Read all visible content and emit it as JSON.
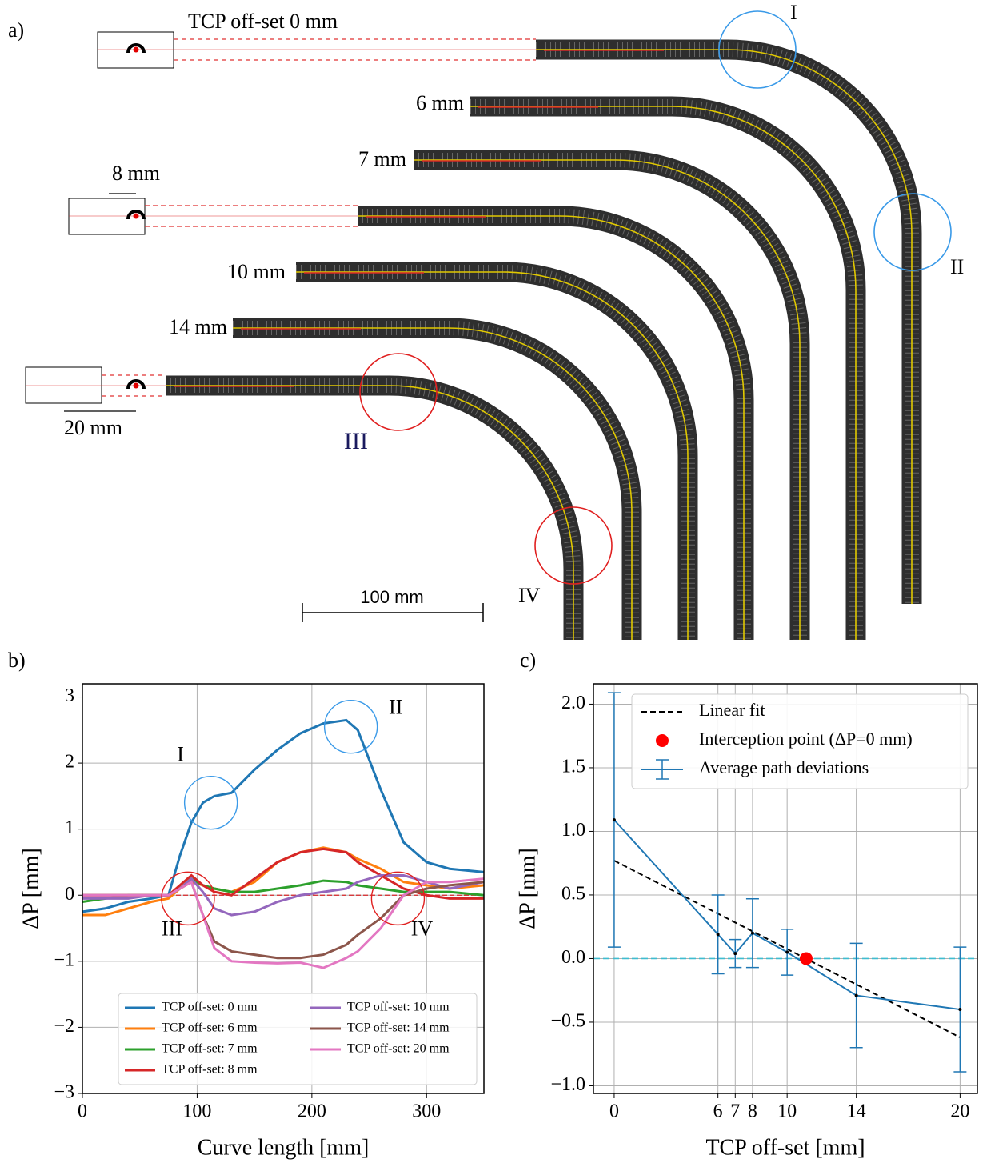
{
  "panel_labels": [
    "a)",
    "b)",
    "c)"
  ],
  "diagram": {
    "offset_labels": [
      "TCP off-set 0 mm",
      "6 mm",
      "7 mm",
      "10 mm",
      "14 mm"
    ],
    "dimension_labels": [
      "8 mm",
      "20 mm"
    ],
    "scale_bar": "100 mm",
    "markers": [
      "I",
      "II",
      "III",
      "IV"
    ]
  },
  "chart_data": [
    {
      "type": "line",
      "xlabel": "Curve length [mm]",
      "ylabel": "ΔP [mm]",
      "x": [
        0,
        20,
        40,
        60,
        75,
        85,
        95,
        105,
        115,
        130,
        150,
        170,
        190,
        210,
        230,
        240,
        260,
        280,
        300,
        320,
        350
      ],
      "series": [
        {
          "name": "TCP off-set: 0 mm",
          "color": "#1f77b4",
          "values": [
            -0.25,
            -0.2,
            -0.1,
            -0.05,
            0.0,
            0.6,
            1.1,
            1.4,
            1.5,
            1.55,
            1.9,
            2.2,
            2.45,
            2.6,
            2.65,
            2.5,
            1.6,
            0.8,
            0.5,
            0.4,
            0.35
          ]
        },
        {
          "name": "TCP off-set: 6 mm",
          "color": "#ff7f0e",
          "values": [
            -0.3,
            -0.3,
            -0.2,
            -0.1,
            -0.05,
            0.1,
            0.2,
            0.15,
            0.1,
            0.05,
            0.2,
            0.5,
            0.65,
            0.72,
            0.65,
            0.55,
            0.4,
            0.2,
            0.15,
            0.1,
            0.15
          ]
        },
        {
          "name": "TCP off-set: 7 mm",
          "color": "#2ca02c",
          "values": [
            -0.1,
            -0.05,
            0.0,
            0.0,
            0.0,
            0.1,
            0.25,
            0.15,
            0.1,
            0.05,
            0.05,
            0.1,
            0.15,
            0.22,
            0.2,
            0.15,
            0.1,
            0.05,
            0.05,
            0.05,
            0.0
          ]
        },
        {
          "name": "TCP off-set: 8 mm",
          "color": "#d62728",
          "values": [
            0.0,
            0.0,
            0.0,
            0.0,
            0.0,
            0.15,
            0.3,
            0.15,
            0.05,
            0.0,
            0.25,
            0.5,
            0.65,
            0.7,
            0.65,
            0.5,
            0.3,
            0.1,
            0.0,
            -0.05,
            -0.05
          ]
        },
        {
          "name": "TCP off-set: 10 mm",
          "color": "#9467bd",
          "values": [
            -0.05,
            -0.05,
            -0.05,
            0.0,
            0.0,
            0.1,
            0.25,
            0.05,
            -0.2,
            -0.3,
            -0.25,
            -0.1,
            0.0,
            0.05,
            0.1,
            0.2,
            0.3,
            0.3,
            0.2,
            0.1,
            0.2
          ]
        },
        {
          "name": "TCP off-set: 14 mm",
          "color": "#8c564b",
          "values": [
            0.0,
            0.0,
            0.0,
            0.0,
            0.0,
            0.1,
            0.2,
            -0.3,
            -0.7,
            -0.85,
            -0.9,
            -0.95,
            -0.95,
            -0.9,
            -0.75,
            -0.6,
            -0.35,
            0.0,
            0.1,
            0.15,
            0.2
          ]
        },
        {
          "name": "TCP off-set: 20 mm",
          "color": "#e377c2",
          "values": [
            0.0,
            0.0,
            0.0,
            0.0,
            0.0,
            0.1,
            0.2,
            -0.3,
            -0.8,
            -1.0,
            -1.02,
            -1.03,
            -1.02,
            -1.1,
            -0.95,
            -0.85,
            -0.5,
            0.0,
            0.2,
            0.2,
            0.25
          ]
        }
      ],
      "xlim": [
        0,
        350
      ],
      "ylim": [
        -3,
        3.2
      ],
      "xticks": [
        0,
        100,
        200,
        300
      ],
      "yticks": [
        {
          "value": -3,
          "label": "−3"
        },
        {
          "value": -2,
          "label": "−2"
        },
        {
          "value": -1,
          "label": "−1"
        },
        0,
        1,
        2,
        3
      ],
      "grid": true,
      "legend": "lower center",
      "annotations": [
        "I",
        "II",
        "III",
        "IV"
      ]
    },
    {
      "type": "errorbar",
      "xlabel": "TCP off-set [mm]",
      "ylabel": "ΔP [mm]",
      "series": [
        {
          "name": "Linear fit",
          "kind": "line",
          "style": "dashed",
          "color": "#000000",
          "x": [
            0,
            20
          ],
          "values": [
            0.77,
            -0.62
          ]
        },
        {
          "name": "Interception point (ΔP=0 mm)",
          "kind": "scatter",
          "color": "#ff0000",
          "x": [
            11.1
          ],
          "values": [
            0
          ]
        },
        {
          "name": "Average path deviations",
          "kind": "errorbar",
          "color": "#1f77b4",
          "x": [
            0,
            6,
            7,
            8,
            10,
            14,
            20
          ],
          "values": [
            1.09,
            0.19,
            0.04,
            0.2,
            0.05,
            -0.29,
            -0.4
          ],
          "errors": [
            1.0,
            0.31,
            0.11,
            0.27,
            0.18,
            0.41,
            0.49
          ]
        }
      ],
      "xlim": [
        -1.2,
        21.0
      ],
      "ylim": [
        -1.06,
        2.16
      ],
      "xticks": [
        0,
        6,
        7,
        8,
        10,
        14,
        20
      ],
      "yticks": [
        {
          "value": -1,
          "label": "−1.0"
        },
        {
          "value": -0.5,
          "label": "−0.5"
        },
        {
          "value": 0,
          "label": "0.0"
        },
        {
          "value": 0.5,
          "label": "0.5"
        },
        {
          "value": 1,
          "label": "1.0"
        },
        {
          "value": 1.5,
          "label": "1.5"
        },
        {
          "value": 2,
          "label": "2.0"
        }
      ],
      "grid": true,
      "legend": "upper right"
    }
  ]
}
